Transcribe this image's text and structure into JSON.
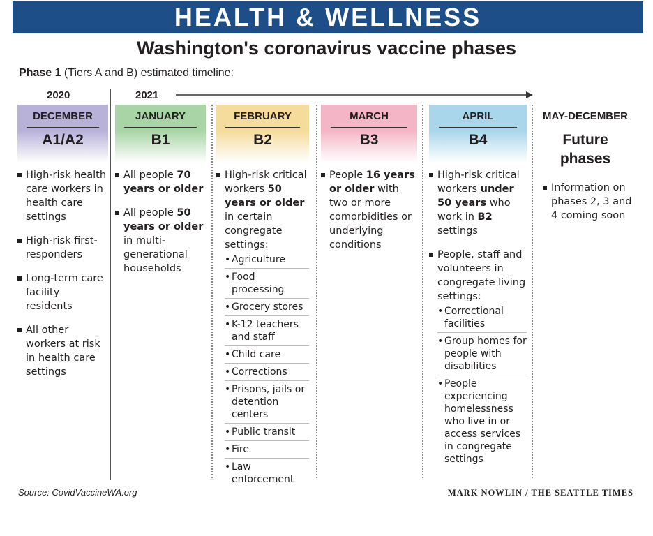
{
  "banner": "HEALTH & WELLNESS",
  "title": "Washington's coronavirus vaccine phases",
  "subtitle": {
    "bold": "Phase 1",
    "rest": " (Tiers A and B) estimated timeline:"
  },
  "years": {
    "y2020": "2020",
    "y2021": "2021"
  },
  "columns": [
    {
      "month": "DECEMBER",
      "tier": "A1/A2",
      "color": "#b8b2d9",
      "items": [
        {
          "parts": [
            {
              "t": "High-risk health care workers in health care settings",
              "b": false
            }
          ]
        },
        {
          "parts": [
            {
              "t": "High-risk first-responders",
              "b": false
            }
          ]
        },
        {
          "parts": [
            {
              "t": "Long-term care facility residents",
              "b": false
            }
          ]
        },
        {
          "parts": [
            {
              "t": "All other workers at risk in health care settings",
              "b": false
            }
          ]
        }
      ]
    },
    {
      "month": "JANUARY",
      "tier": "B1",
      "color": "#a9d5a6",
      "items": [
        {
          "parts": [
            {
              "t": "All people ",
              "b": false
            },
            {
              "t": "70 years or older",
              "b": true
            }
          ]
        },
        {
          "parts": [
            {
              "t": "All people ",
              "b": false
            },
            {
              "t": "50 years or older",
              "b": true
            },
            {
              "t": " in multi-generational households",
              "b": false
            }
          ]
        }
      ]
    },
    {
      "month": "FEBRUARY",
      "tier": "B2",
      "color": "#f5dc9c",
      "items": [
        {
          "parts": [
            {
              "t": "High-risk critical workers ",
              "b": false
            },
            {
              "t": "50 years or older",
              "b": true
            },
            {
              "t": " in certain congregate settings:",
              "b": false
            }
          ],
          "sub": [
            "Agriculture",
            "Food processing",
            "Grocery stores",
            "K-12 teachers and staff",
            "Child care",
            "Corrections",
            "Prisons, jails or detention centers",
            "Public transit",
            "Fire",
            "Law enforcement"
          ]
        }
      ]
    },
    {
      "month": "MARCH",
      "tier": "B3",
      "color": "#f4b6c6",
      "items": [
        {
          "parts": [
            {
              "t": "People ",
              "b": false
            },
            {
              "t": "16 years or older",
              "b": true
            },
            {
              "t": " with two or more comorbidities or underlying conditions",
              "b": false
            }
          ]
        }
      ]
    },
    {
      "month": "APRIL",
      "tier": "B4",
      "color": "#a9d6ea",
      "items": [
        {
          "parts": [
            {
              "t": "High-risk critical workers ",
              "b": false
            },
            {
              "t": "under 50 years",
              "b": true
            },
            {
              "t": " who work in ",
              "b": false
            },
            {
              "t": "B2",
              "b": true
            },
            {
              "t": " settings",
              "b": false
            }
          ]
        },
        {
          "parts": [
            {
              "t": "People, staff and volunteers in congregate living settings:",
              "b": false
            }
          ],
          "sub": [
            "Correctional facilities",
            "Group homes for people with disabilities",
            "People experiencing homelessness who live in or access services in congregate settings"
          ]
        }
      ]
    }
  ],
  "future": {
    "month": "MAY-DECEMBER",
    "title": "Future phases",
    "item": "Information on phases 2, 3 and 4 coming soon"
  },
  "source": "Source: CovidVaccineWA.org",
  "credit": "MARK NOWLIN / THE SEATTLE TIMES"
}
